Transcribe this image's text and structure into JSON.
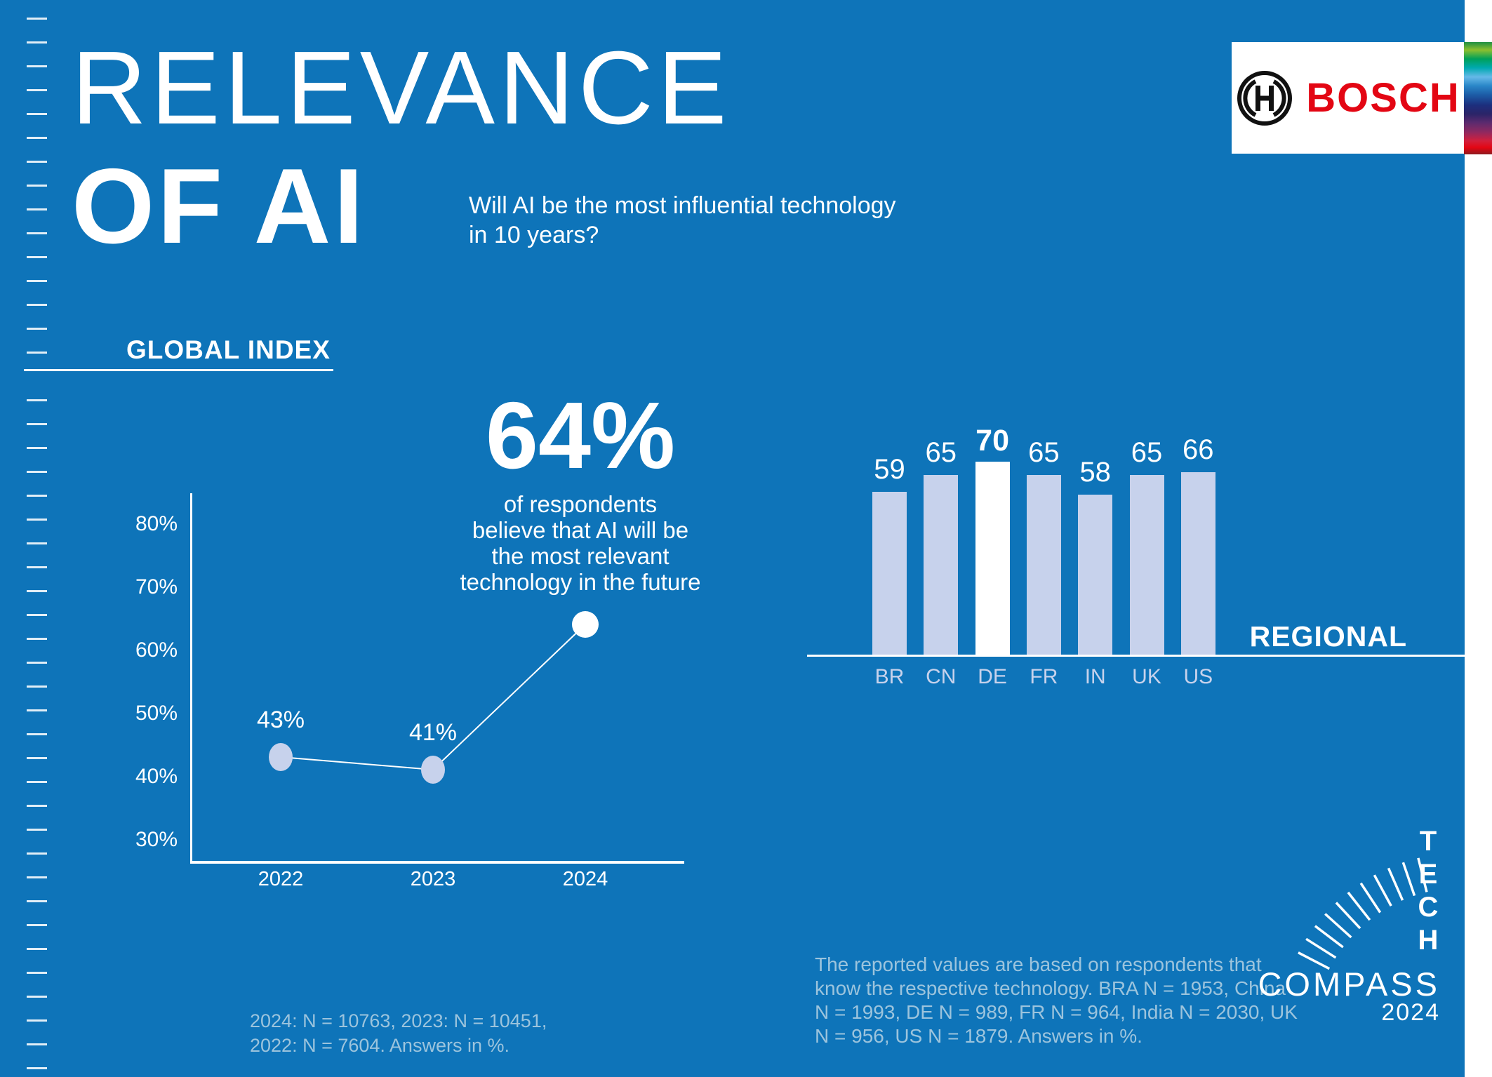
{
  "header": {
    "title_line1": "RELEVANCE",
    "title_line2": "OF AI",
    "subtitle_line1": "Will AI be the most influential technology",
    "subtitle_line2": "in 10 years?"
  },
  "brand": {
    "name": "BOSCH",
    "symbol": "bosch-circle-h-icon"
  },
  "global_index": {
    "heading": "GLOBAL INDEX",
    "highlight_value": "64%",
    "highlight_lines": [
      "of respondents",
      "believe that AI will be",
      "the most relevant",
      "technology in the future"
    ],
    "footnote_lines": [
      "2024: N = 10763, 2023: N = 10451,",
      "2022: N = 7604. Answers in %."
    ]
  },
  "regional": {
    "heading": "REGIONAL",
    "footnote_lines": [
      "The reported values are based on respondents that",
      "know the respective technology. BRA N = 1953, China",
      "N = 1993, DE N = 989, FR N = 964, India N = 2030, UK",
      "N = 956, US N = 1879. Answers in %."
    ]
  },
  "techcompass": {
    "vertical_letters": [
      "T",
      "E",
      "C",
      "H"
    ],
    "wordmark": "COMPASS",
    "year": "2024",
    "dial": "compass-dial-ticks"
  },
  "chart_data": [
    {
      "type": "line",
      "title": "GLOBAL INDEX",
      "x": [
        "2022",
        "2023",
        "2024"
      ],
      "values": [
        43,
        41,
        64
      ],
      "point_labels": [
        "43%",
        "41%",
        ""
      ],
      "ytick_values": [
        80,
        70,
        60,
        50,
        40,
        30
      ],
      "ytick_labels": [
        "80%",
        "70%",
        "60%",
        "50%",
        "40%",
        "30%"
      ],
      "ylim": [
        26.5,
        84
      ],
      "grid": false,
      "legend": "none",
      "point_styles": [
        "lavender",
        "lavender",
        "white"
      ]
    },
    {
      "type": "bar",
      "title": "REGIONAL",
      "categories": [
        "BR",
        "CN",
        "DE",
        "FR",
        "IN",
        "UK",
        "US"
      ],
      "values": [
        59,
        65,
        70,
        65,
        58,
        65,
        66
      ],
      "highlight_index": 2,
      "ylim": [
        0,
        75
      ],
      "grid": false
    }
  ],
  "colors": {
    "background_blue": "#0e74b9",
    "bar_lavender": "#c7d2ec",
    "highlight_white": "#ffffff",
    "bosch_red": "#e30613",
    "footnote_blue": "#9cc4dd"
  }
}
